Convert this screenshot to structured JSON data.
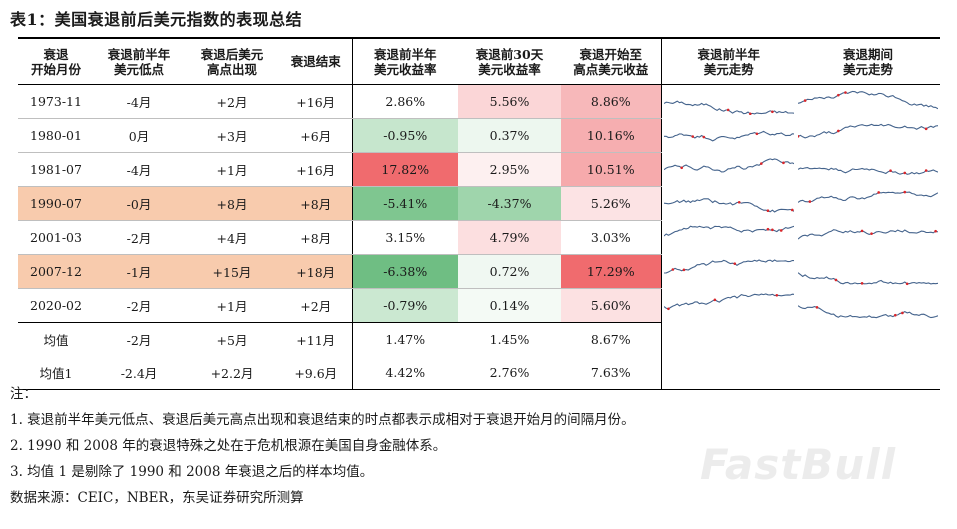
{
  "title": "表1：美国衰退前后美元指数的表现总结",
  "headers": [
    {
      "l1": "衰退",
      "l2": "开始月份"
    },
    {
      "l1": "衰退前半年",
      "l2": "美元低点"
    },
    {
      "l1": "衰退后美元",
      "l2": "高点出现"
    },
    {
      "l1": "衰退结束",
      "l2": ""
    },
    {
      "l1": "衰退前半年",
      "l2": "美元收益率"
    },
    {
      "l1": "衰退前30天",
      "l2": "美元收益率"
    },
    {
      "l1": "衰退开始至",
      "l2": "高点美元收益"
    },
    {
      "l1": "衰退前半年",
      "l2": "美元走势"
    },
    {
      "l1": "衰退期间",
      "l2": "美元走势"
    }
  ],
  "rows": [
    {
      "start": "1973-11",
      "low": "-4月",
      "high": "+2月",
      "end": "+16月",
      "ret6m": "2.86%",
      "ret30d": "5.56%",
      "retPeak": "8.86%",
      "highlight": false,
      "c5": "#ffffff",
      "c6": "#fbd6d7",
      "c7": "#f7b8ba"
    },
    {
      "start": "1980-01",
      "low": "0月",
      "high": "+3月",
      "end": "+6月",
      "ret6m": "-0.95%",
      "ret30d": "0.37%",
      "retPeak": "10.16%",
      "highlight": false,
      "c5": "#c6e6cd",
      "c6": "#edf7ef",
      "c7": "#f6aeb0"
    },
    {
      "start": "1981-07",
      "low": "-4月",
      "high": "+1月",
      "end": "+16月",
      "ret6m": "17.82%",
      "ret30d": "2.95%",
      "retPeak": "10.51%",
      "highlight": false,
      "c5": "#f06b6e",
      "c6": "#fdf0f0",
      "c7": "#f6aaac"
    },
    {
      "start": "1990-07",
      "low": "-0月",
      "high": "+8月",
      "end": "+8月",
      "ret6m": "-5.41%",
      "ret30d": "-4.37%",
      "retPeak": "5.26%",
      "highlight": true,
      "c5": "#7fc690",
      "c6": "#9fd5ac",
      "c7": "#fce3e4"
    },
    {
      "start": "2001-03",
      "low": "-2月",
      "high": "+4月",
      "end": "+8月",
      "ret6m": "3.15%",
      "ret30d": "4.79%",
      "retPeak": "3.03%",
      "highlight": false,
      "c5": "#ffffff",
      "c6": "#fcdfe0",
      "c7": "#ffffff"
    },
    {
      "start": "2007-12",
      "low": "-1月",
      "high": "+15月",
      "end": "+18月",
      "ret6m": "-6.38%",
      "ret30d": "0.72%",
      "retPeak": "17.29%",
      "highlight": true,
      "c5": "#6fbe83",
      "c6": "#f0f8f2",
      "c7": "#f06b6e"
    },
    {
      "start": "2020-02",
      "low": "-2月",
      "high": "+1月",
      "end": "+2月",
      "ret6m": "-0.79%",
      "ret30d": "0.14%",
      "retPeak": "5.60%",
      "highlight": false,
      "c5": "#cbe8d1",
      "c6": "#f4faf5",
      "c7": "#fce1e2"
    }
  ],
  "averages": [
    {
      "label": "均值",
      "low": "-2月",
      "high": "+5月",
      "end": "+11月",
      "ret6m": "1.47%",
      "ret30d": "1.45%",
      "retPeak": "8.67%"
    },
    {
      "label": "均值1",
      "low": "-2.4月",
      "high": "+2.2月",
      "end": "+9.6月",
      "ret6m": "4.42%",
      "ret30d": "2.76%",
      "retPeak": "7.63%"
    }
  ],
  "notes": [
    "注：",
    "1. 衰退前半年美元低点、衰退后美元高点出现和衰退结束的时点都表示成相对于衰退开始月的间隔月份。",
    "2. 1990 和 2008 年的衰退特殊之处在于危机根源在美国自身金融体系。",
    "3. 均值 1 是剔除了 1990 和 2008 年衰退之后的样本均值。",
    "数据来源：CEIC，NBER，东吴证券研究所测算"
  ],
  "watermark": "FastBull",
  "colors": {
    "highlight_row": "#f8cbad",
    "spark_line": "#44638c",
    "spark_marker": "#d9262b"
  }
}
